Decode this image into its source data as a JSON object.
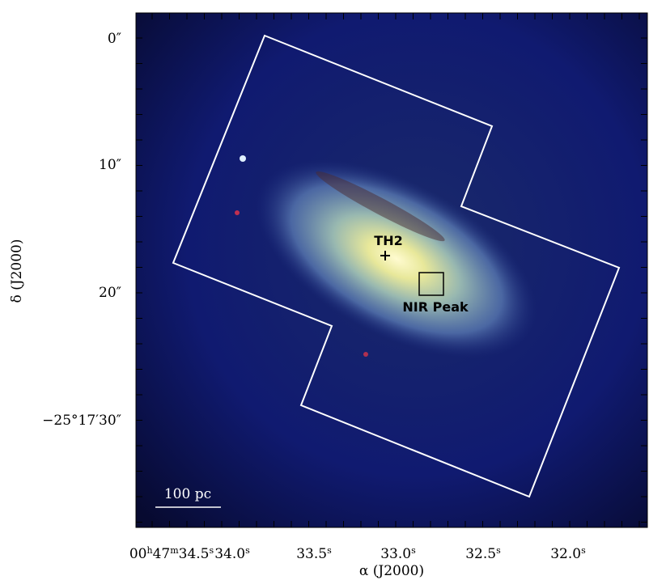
{
  "figure": {
    "x_axis": {
      "label": "α (J2000)",
      "ticks": [
        [
          "00",
          "h",
          "47",
          "m",
          "34.5",
          "s"
        ],
        [
          "34.0",
          "s"
        ],
        [
          "33.5",
          "s"
        ],
        [
          "33.0",
          "s"
        ],
        [
          "32.5",
          "s"
        ],
        [
          "32.0",
          "s"
        ]
      ]
    },
    "y_axis": {
      "label": "δ (J2000)",
      "ticks": [
        "0″",
        "10″",
        "20″",
        "−25°17′30″"
      ]
    },
    "annotations": {
      "source": "TH2",
      "peak": "NIR Peak",
      "scale_bar": "100 pc"
    }
  }
}
